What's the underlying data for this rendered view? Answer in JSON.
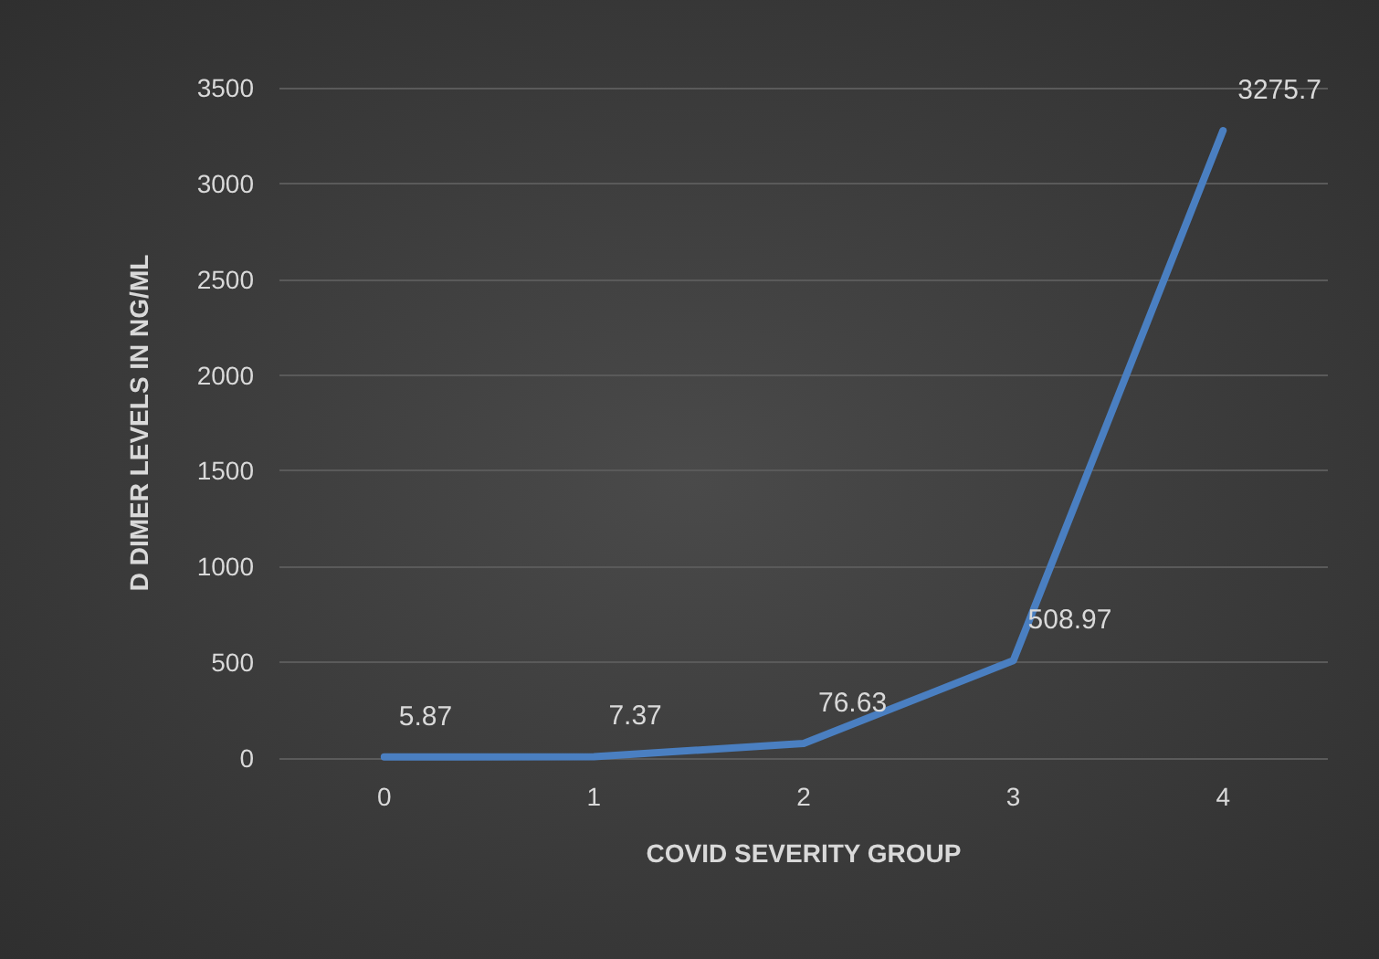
{
  "chart_data": {
    "type": "line",
    "xlabel": "COVID SEVERITY GROUP",
    "ylabel": "D DIMER LEVELS IN NG/ML",
    "categories": [
      "0",
      "1",
      "2",
      "3",
      "4"
    ],
    "series": [
      {
        "color": "#4a7fc1",
        "values": [
          5.87,
          7.37,
          76.63,
          508.97,
          3275.7
        ]
      }
    ],
    "ylim": [
      0,
      3500
    ],
    "yticks": [
      0,
      500,
      1000,
      1500,
      2000,
      2500,
      3000,
      3500
    ],
    "grid": "y",
    "marker": "none",
    "line_style": "solid",
    "data_labels": true
  }
}
